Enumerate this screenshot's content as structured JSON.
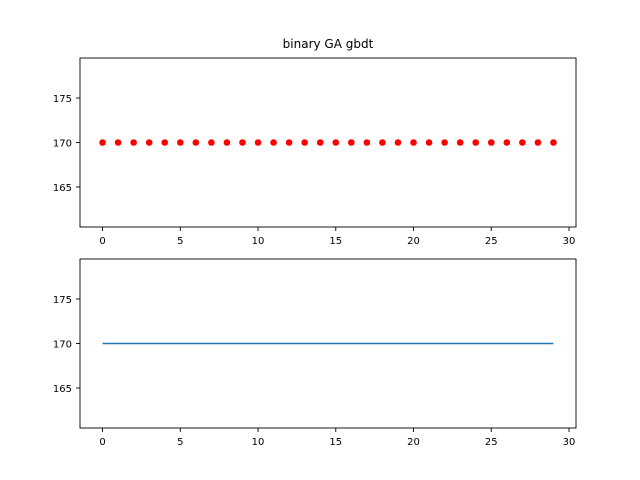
{
  "chart_data": [
    {
      "type": "scatter",
      "title": "binary GA gbdt",
      "xlabel": "",
      "ylabel": "",
      "x": [
        0,
        1,
        2,
        3,
        4,
        5,
        6,
        7,
        8,
        9,
        10,
        11,
        12,
        13,
        14,
        15,
        16,
        17,
        18,
        19,
        20,
        21,
        22,
        23,
        24,
        25,
        26,
        27,
        28,
        29
      ],
      "values": [
        170,
        170,
        170,
        170,
        170,
        170,
        170,
        170,
        170,
        170,
        170,
        170,
        170,
        170,
        170,
        170,
        170,
        170,
        170,
        170,
        170,
        170,
        170,
        170,
        170,
        170,
        170,
        170,
        170,
        170
      ],
      "xlim": [
        -1.45,
        30.45
      ],
      "ylim": [
        160.5,
        179.5
      ],
      "xticks": [
        "0",
        "5",
        "10",
        "15",
        "20",
        "25",
        "30"
      ],
      "yticks": [
        "165",
        "170",
        "175"
      ],
      "color": "#ff0000",
      "grid": false
    },
    {
      "type": "line",
      "title": "",
      "xlabel": "",
      "ylabel": "",
      "x": [
        0,
        1,
        2,
        3,
        4,
        5,
        6,
        7,
        8,
        9,
        10,
        11,
        12,
        13,
        14,
        15,
        16,
        17,
        18,
        19,
        20,
        21,
        22,
        23,
        24,
        25,
        26,
        27,
        28,
        29
      ],
      "values": [
        170,
        170,
        170,
        170,
        170,
        170,
        170,
        170,
        170,
        170,
        170,
        170,
        170,
        170,
        170,
        170,
        170,
        170,
        170,
        170,
        170,
        170,
        170,
        170,
        170,
        170,
        170,
        170,
        170,
        170
      ],
      "xlim": [
        -1.45,
        30.45
      ],
      "ylim": [
        160.5,
        179.5
      ],
      "xticks": [
        "0",
        "5",
        "10",
        "15",
        "20",
        "25",
        "30"
      ],
      "yticks": [
        "165",
        "170",
        "175"
      ],
      "color": "#1f77b4",
      "grid": false
    }
  ]
}
